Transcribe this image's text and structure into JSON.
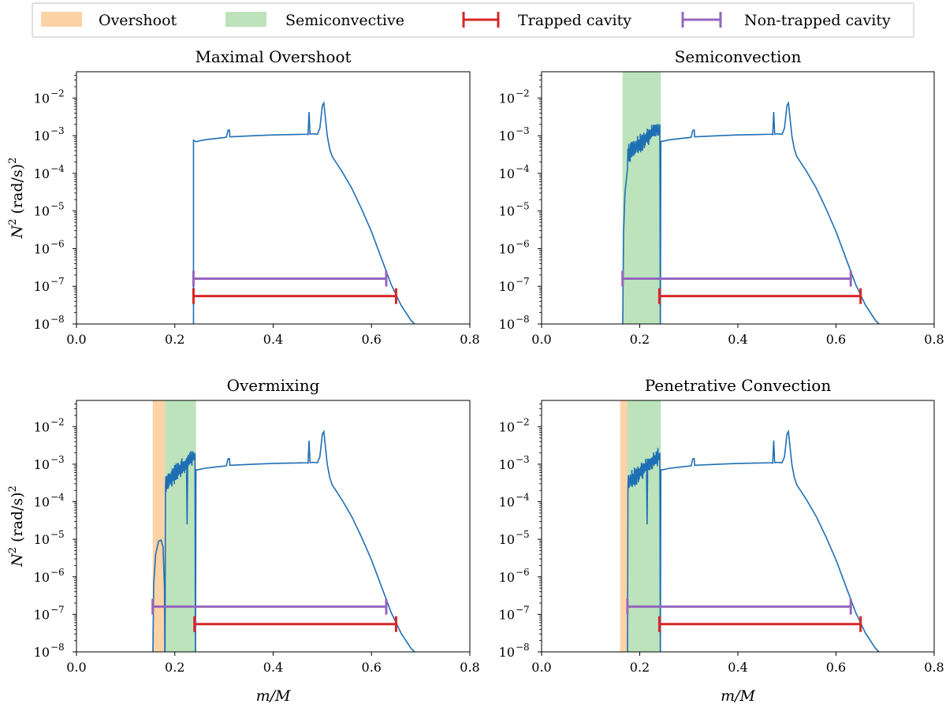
{
  "legend": [
    {
      "label": "Overshoot",
      "kind": "band",
      "color": "#fcd3a6"
    },
    {
      "label": "Semiconvective",
      "kind": "band",
      "color": "#bde3bd"
    },
    {
      "label": "Trapped cavity",
      "kind": "errorbar",
      "color": "#d62728"
    },
    {
      "label": "Non-trapped cavity",
      "kind": "errorbar",
      "color": "#9467bd"
    }
  ],
  "colors": {
    "profile": "#1f6fb4",
    "trapped": "#d62728",
    "nontrapped": "#9467bd",
    "overshoot": "#fcd3a6",
    "semiconvective": "#bde3bd"
  },
  "axis_labels": {
    "x": "m/M",
    "y_base": "N",
    "y_sup": "2",
    "y_unit": " (rad/s)",
    "y_unit_sup": "2"
  },
  "chart_data": [
    {
      "type": "line",
      "title": "Maximal Overshoot",
      "xlabel": "m/M",
      "ylabel": "N^2 (rad/s)^2",
      "yscale": "log",
      "xlim": [
        0.0,
        0.8
      ],
      "ylim": [
        1e-08,
        0.05
      ],
      "xticks": [
        "0.0",
        "0.2",
        "0.4",
        "0.6",
        "0.8"
      ],
      "yticks": [
        {
          "base": "10",
          "exp": "−2",
          "value": -2
        },
        {
          "base": "10",
          "exp": "−3",
          "value": -3
        },
        {
          "base": "10",
          "exp": "−4",
          "value": -4
        },
        {
          "base": "10",
          "exp": "−5",
          "value": -5
        },
        {
          "base": "10",
          "exp": "−6",
          "value": -6
        },
        {
          "base": "10",
          "exp": "−7",
          "value": -7
        },
        {
          "base": "10",
          "exp": "−8",
          "value": -8
        }
      ],
      "overshoot": null,
      "semiconvective": null,
      "core_edge": 0.238,
      "spikes": [],
      "trapped": {
        "x0": 0.238,
        "x1": 0.65,
        "y": 5.5e-08
      },
      "nontrapped": {
        "x0": 0.238,
        "x1": 0.63,
        "y": 1.6e-07
      }
    },
    {
      "type": "line",
      "title": "Semiconvection",
      "xlabel": "m/M",
      "ylabel": "N^2 (rad/s)^2",
      "yscale": "log",
      "xlim": [
        0.0,
        0.8
      ],
      "ylim": [
        1e-08,
        0.05
      ],
      "xticks": [
        "0.0",
        "0.2",
        "0.4",
        "0.6",
        "0.8"
      ],
      "yticks": [
        {
          "base": "10",
          "exp": "−2",
          "value": -2
        },
        {
          "base": "10",
          "exp": "−3",
          "value": -3
        },
        {
          "base": "10",
          "exp": "−4",
          "value": -4
        },
        {
          "base": "10",
          "exp": "−5",
          "value": -5
        },
        {
          "base": "10",
          "exp": "−6",
          "value": -6
        },
        {
          "base": "10",
          "exp": "−7",
          "value": -7
        },
        {
          "base": "10",
          "exp": "−8",
          "value": -8
        }
      ],
      "overshoot": null,
      "semiconvective": [
        0.165,
        0.243
      ],
      "core_edge": 0.165,
      "spikes": [],
      "trapped": {
        "x0": 0.24,
        "x1": 0.65,
        "y": 5.5e-08
      },
      "nontrapped": {
        "x0": 0.165,
        "x1": 0.63,
        "y": 1.6e-07
      }
    },
    {
      "type": "line",
      "title": "Overmixing",
      "xlabel": "m/M",
      "ylabel": "N^2 (rad/s)^2",
      "yscale": "log",
      "xlim": [
        0.0,
        0.8
      ],
      "ylim": [
        1e-08,
        0.05
      ],
      "xticks": [
        "0.0",
        "0.2",
        "0.4",
        "0.6",
        "0.8"
      ],
      "yticks": [
        {
          "base": "10",
          "exp": "−2",
          "value": -2
        },
        {
          "base": "10",
          "exp": "−3",
          "value": -3
        },
        {
          "base": "10",
          "exp": "−4",
          "value": -4
        },
        {
          "base": "10",
          "exp": "−5",
          "value": -5
        },
        {
          "base": "10",
          "exp": "−6",
          "value": -6
        },
        {
          "base": "10",
          "exp": "−7",
          "value": -7
        },
        {
          "base": "10",
          "exp": "−8",
          "value": -8
        }
      ],
      "overshoot": [
        0.155,
        0.18
      ],
      "semiconvective": [
        0.18,
        0.243
      ],
      "core_edge": 0.155,
      "spikes": [
        0.225
      ],
      "trapped": {
        "x0": 0.24,
        "x1": 0.65,
        "y": 5.5e-08
      },
      "nontrapped": {
        "x0": 0.155,
        "x1": 0.63,
        "y": 1.6e-07
      }
    },
    {
      "type": "line",
      "title": "Penetrative Convection",
      "xlabel": "m/M",
      "ylabel": "N^2 (rad/s)^2",
      "yscale": "log",
      "xlim": [
        0.0,
        0.8
      ],
      "ylim": [
        1e-08,
        0.05
      ],
      "xticks": [
        "0.0",
        "0.2",
        "0.4",
        "0.6",
        "0.8"
      ],
      "yticks": [
        {
          "base": "10",
          "exp": "−2",
          "value": -2
        },
        {
          "base": "10",
          "exp": "−3",
          "value": -3
        },
        {
          "base": "10",
          "exp": "−4",
          "value": -4
        },
        {
          "base": "10",
          "exp": "−5",
          "value": -5
        },
        {
          "base": "10",
          "exp": "−6",
          "value": -6
        },
        {
          "base": "10",
          "exp": "−7",
          "value": -7
        },
        {
          "base": "10",
          "exp": "−8",
          "value": -8
        }
      ],
      "overshoot": [
        0.16,
        0.175
      ],
      "semiconvective": [
        0.175,
        0.243
      ],
      "core_edge": 0.175,
      "spikes": [
        0.215
      ],
      "trapped": {
        "x0": 0.24,
        "x1": 0.65,
        "y": 5.5e-08
      },
      "nontrapped": {
        "x0": 0.175,
        "x1": 0.63,
        "y": 1.6e-07
      }
    }
  ]
}
